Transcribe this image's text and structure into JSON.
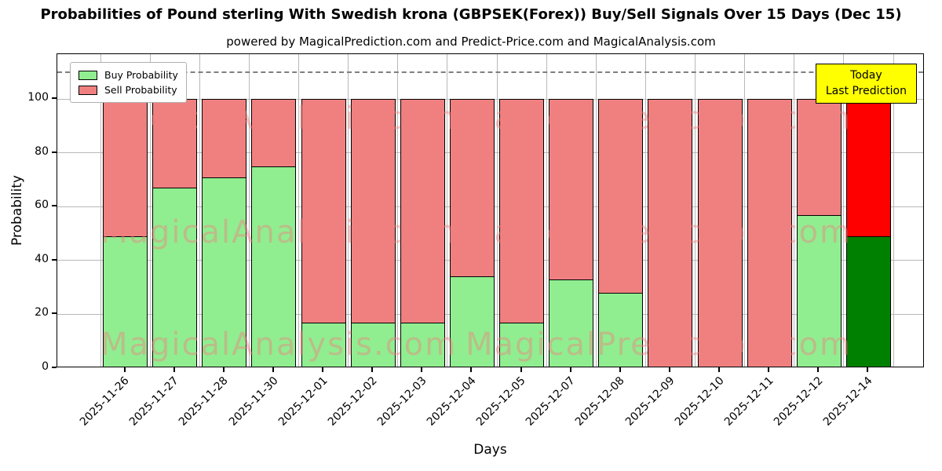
{
  "chart_data": {
    "type": "bar",
    "stacked": true,
    "title": "Probabilities of Pound sterling With Swedish krona (GBPSEK(Forex)) Buy/Sell Signals Over 15 Days (Dec 15)",
    "subtitle": "powered by MagicalPrediction.com and Predict-Price.com and MagicalAnalysis.com",
    "xlabel": "Days",
    "ylabel": "Probability",
    "ylim": [
      0,
      116.7
    ],
    "yticks": [
      0,
      20,
      40,
      60,
      80,
      100
    ],
    "grid": true,
    "dashed_guideline_y": 110,
    "legend_position": "upper left",
    "categories": [
      "2025-11-26",
      "2025-11-27",
      "2025-11-28",
      "2025-11-30",
      "2025-12-01",
      "2025-12-02",
      "2025-12-03",
      "2025-12-04",
      "2025-12-05",
      "2025-12-07",
      "2025-12-08",
      "2025-12-09",
      "2025-12-10",
      "2025-12-11",
      "2025-12-12",
      "2025-12-14"
    ],
    "series": [
      {
        "name": "Buy Probability",
        "color": "#90ee90",
        "values": [
          49,
          67,
          71,
          75,
          17,
          17,
          17,
          34,
          17,
          33,
          28,
          0,
          0,
          0,
          57,
          49
        ]
      },
      {
        "name": "Sell Probability",
        "color": "#f08080",
        "values": [
          51,
          33,
          29,
          25,
          83,
          83,
          83,
          66,
          83,
          67,
          72,
          100,
          100,
          100,
          43,
          51
        ]
      }
    ],
    "highlight_last_bar": {
      "buy_color": "#008000",
      "sell_color": "#ff0000"
    },
    "annotation": {
      "line1": "Today",
      "line2": "Last Prediction",
      "bg_color": "#ffff00"
    },
    "watermarks": {
      "left": "MagicalAnalysis.com",
      "right": "MagicalPrediction.com"
    }
  }
}
